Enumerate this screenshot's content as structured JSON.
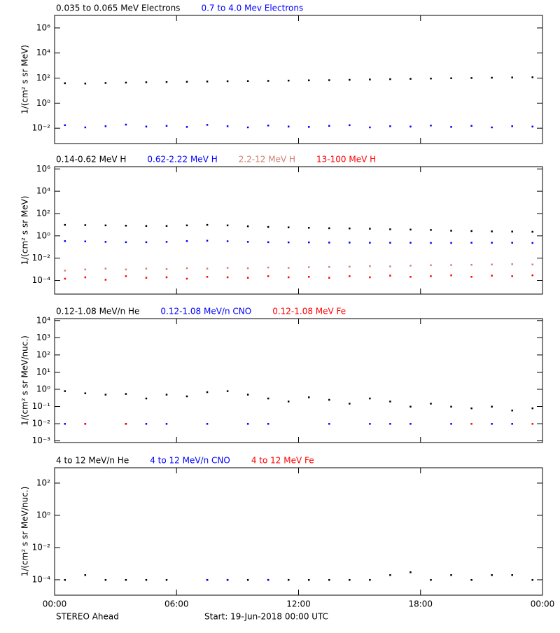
{
  "chart_data": [
    {
      "type": "scatter",
      "yscale": "log",
      "ylabel": "1/(cm² s sr MeV)",
      "xlim": [
        0,
        24
      ],
      "ylim": [
        0.0006,
        10000000
      ],
      "yticks": [
        {
          "value": 0.01,
          "label": "10⁻²"
        },
        {
          "value": 1,
          "label": "10⁰"
        },
        {
          "value": 100,
          "label": "10²"
        },
        {
          "value": 10000,
          "label": "10⁴"
        },
        {
          "value": 1000000,
          "label": "10⁶"
        }
      ],
      "x": [
        0.5,
        1.5,
        2.5,
        3.5,
        4.5,
        5.5,
        6.5,
        7.5,
        8.5,
        9.5,
        10.5,
        11.5,
        12.5,
        13.5,
        14.5,
        15.5,
        16.5,
        17.5,
        18.5,
        19.5,
        20.5,
        21.5,
        22.5,
        23.5
      ],
      "series": [
        {
          "name": "0.035 to 0.065 MeV Electrons",
          "color": "#000000",
          "values": [
            40,
            38,
            42,
            45,
            48,
            50,
            52,
            55,
            58,
            60,
            62,
            65,
            68,
            70,
            75,
            80,
            85,
            90,
            95,
            100,
            105,
            110,
            115,
            120
          ]
        },
        {
          "name": "0.7 to 4.0 Mev Electrons",
          "color": "#0000ff",
          "values": [
            0.018,
            0.012,
            0.015,
            0.02,
            0.014,
            0.016,
            0.013,
            0.019,
            0.015,
            0.012,
            0.017,
            0.014,
            0.013,
            0.016,
            0.018,
            0.012,
            0.015,
            0.014,
            0.017,
            0.013,
            0.016,
            0.012,
            0.015,
            0.014
          ]
        }
      ]
    },
    {
      "type": "scatter",
      "yscale": "log",
      "ylabel": "1/(cm² s sr MeV)",
      "xlim": [
        0,
        24
      ],
      "ylim": [
        6e-06,
        1600000
      ],
      "yticks": [
        {
          "value": 0.0001,
          "label": "10⁻⁴"
        },
        {
          "value": 0.01,
          "label": "10⁻²"
        },
        {
          "value": 1,
          "label": "10⁰"
        },
        {
          "value": 100,
          "label": "10²"
        },
        {
          "value": 10000,
          "label": "10⁴"
        },
        {
          "value": 1000000,
          "label": "10⁶"
        }
      ],
      "x": [
        0.5,
        1.5,
        2.5,
        3.5,
        4.5,
        5.5,
        6.5,
        7.5,
        8.5,
        9.5,
        10.5,
        11.5,
        12.5,
        13.5,
        14.5,
        15.5,
        16.5,
        17.5,
        18.5,
        19.5,
        20.5,
        21.5,
        22.5,
        23.5
      ],
      "series": [
        {
          "name": "0.14-0.62 MeV H",
          "color": "#000000",
          "values": [
            10,
            9.5,
            9,
            8.5,
            8,
            8,
            9,
            10,
            9,
            7.5,
            6.5,
            6,
            5.5,
            5,
            4.8,
            4.5,
            4,
            3.8,
            3.5,
            3,
            2.8,
            2.6,
            2.5,
            2.4
          ]
        },
        {
          "name": "0.62-2.22 MeV H",
          "color": "#0000ff",
          "values": [
            0.35,
            0.33,
            0.3,
            0.28,
            0.28,
            0.3,
            0.35,
            0.38,
            0.34,
            0.3,
            0.28,
            0.27,
            0.27,
            0.26,
            0.26,
            0.25,
            0.25,
            0.25,
            0.24,
            0.24,
            0.25,
            0.25,
            0.25,
            0.24
          ]
        },
        {
          "name": "2.2-12 MeV H",
          "color": "#d08070",
          "values": [
            0.0008,
            0.001,
            0.0012,
            0.001,
            0.0012,
            0.0011,
            0.0013,
            0.0012,
            0.0014,
            0.0013,
            0.0015,
            0.0014,
            0.0016,
            0.0017,
            0.0018,
            0.002,
            0.0019,
            0.0022,
            0.0024,
            0.0025,
            0.0026,
            0.0028,
            0.003,
            0.0028
          ]
        },
        {
          "name": "13-100 MeV H",
          "color": "#ff0000",
          "values": [
            0.00015,
            0.0002,
            0.00012,
            0.00025,
            0.00018,
            0.0002,
            0.00015,
            0.00022,
            0.0002,
            0.00018,
            0.00025,
            0.0002,
            0.00022,
            0.00018,
            0.00025,
            0.0002,
            0.00028,
            0.00022,
            0.00025,
            0.0003,
            0.00022,
            0.00028,
            0.00025,
            0.0003
          ]
        }
      ]
    },
    {
      "type": "scatter",
      "yscale": "log",
      "ylabel": "1/(cm² s sr MeV/nuc.)",
      "xlim": [
        0,
        24
      ],
      "ylim": [
        0.0008,
        13000
      ],
      "yticks": [
        {
          "value": 0.001,
          "label": "10⁻³"
        },
        {
          "value": 0.01,
          "label": "10⁻²"
        },
        {
          "value": 0.1,
          "label": "10⁻¹"
        },
        {
          "value": 1,
          "label": "10⁰"
        },
        {
          "value": 10,
          "label": "10¹"
        },
        {
          "value": 100,
          "label": "10²"
        },
        {
          "value": 1000,
          "label": "10³"
        },
        {
          "value": 10000,
          "label": "10⁴"
        }
      ],
      "x": [
        0.5,
        1.5,
        2.5,
        3.5,
        4.5,
        5.5,
        6.5,
        7.5,
        8.5,
        9.5,
        10.5,
        11.5,
        12.5,
        13.5,
        14.5,
        15.5,
        16.5,
        17.5,
        18.5,
        19.5,
        20.5,
        21.5,
        22.5,
        23.5
      ],
      "series": [
        {
          "name": "0.12-1.08 MeV/n He",
          "color": "#000000",
          "values": [
            0.8,
            0.6,
            0.5,
            0.55,
            0.3,
            0.5,
            0.4,
            0.7,
            0.8,
            0.5,
            0.3,
            0.2,
            0.35,
            0.25,
            0.15,
            0.3,
            0.2,
            0.1,
            0.15,
            0.1,
            0.08,
            0.1,
            0.06,
            0.08
          ]
        },
        {
          "name": "0.12-1.08 MeV/n CNO",
          "color": "#0000ff",
          "values": [
            0.01,
            0.01,
            null,
            0.01,
            0.01,
            0.01,
            null,
            0.01,
            null,
            0.01,
            0.01,
            null,
            null,
            0.01,
            null,
            0.01,
            0.01,
            0.01,
            null,
            0.01,
            null,
            0.01,
            0.01,
            null
          ]
        },
        {
          "name": "0.12-1.08 MeV Fe",
          "color": "#ff0000",
          "values": [
            null,
            0.01,
            null,
            0.01,
            null,
            null,
            null,
            null,
            null,
            null,
            null,
            null,
            null,
            null,
            null,
            null,
            null,
            null,
            null,
            null,
            0.01,
            null,
            null,
            0.01
          ]
        }
      ]
    },
    {
      "type": "scatter",
      "yscale": "log",
      "ylabel": "1/(cm² s sr MeV/nuc.)",
      "xlim": [
        0,
        24
      ],
      "ylim": [
        1.1e-05,
        900
      ],
      "yticks": [
        {
          "value": 0.0001,
          "label": "10⁻⁴"
        },
        {
          "value": 0.01,
          "label": "10⁻²"
        },
        {
          "value": 1,
          "label": "10⁰"
        },
        {
          "value": 100,
          "label": "10²"
        }
      ],
      "xticks": [
        {
          "value": 0,
          "label": "00:00"
        },
        {
          "value": 6,
          "label": "06:00"
        },
        {
          "value": 12,
          "label": "12:00"
        },
        {
          "value": 18,
          "label": "18:00"
        },
        {
          "value": 24,
          "label": "00:00"
        }
      ],
      "x": [
        0.5,
        1.5,
        2.5,
        3.5,
        4.5,
        5.5,
        6.5,
        7.5,
        8.5,
        9.5,
        10.5,
        11.5,
        12.5,
        13.5,
        14.5,
        15.5,
        16.5,
        17.5,
        18.5,
        19.5,
        20.5,
        21.5,
        22.5,
        23.5
      ],
      "series": [
        {
          "name": "4 to 12 MeV/n He",
          "color": "#000000",
          "values": [
            0.0001,
            0.0002,
            0.0001,
            0.0001,
            0.0001,
            0.0001,
            null,
            0.0001,
            0.0001,
            0.0001,
            0.0001,
            0.0001,
            0.0001,
            0.0001,
            0.0001,
            0.0001,
            0.0002,
            0.0003,
            0.0001,
            0.0002,
            0.0001,
            0.0002,
            0.0002,
            0.0001
          ]
        },
        {
          "name": "4 to 12 MeV/n CNO",
          "color": "#0000ff",
          "values": [
            null,
            null,
            null,
            null,
            null,
            null,
            null,
            0.0001,
            0.0001,
            null,
            0.0001,
            null,
            null,
            null,
            null,
            null,
            null,
            null,
            null,
            null,
            null,
            null,
            null,
            null
          ]
        },
        {
          "name": "4 to 12 MeV Fe",
          "color": "#ff0000",
          "values": [
            null,
            null,
            null,
            null,
            null,
            null,
            null,
            null,
            null,
            null,
            null,
            null,
            null,
            null,
            null,
            null,
            null,
            null,
            null,
            null,
            null,
            null,
            null,
            null
          ]
        }
      ]
    }
  ],
  "footer": {
    "left": "STEREO Ahead",
    "center": "Start: 19-Jun-2018 00:00 UTC"
  }
}
